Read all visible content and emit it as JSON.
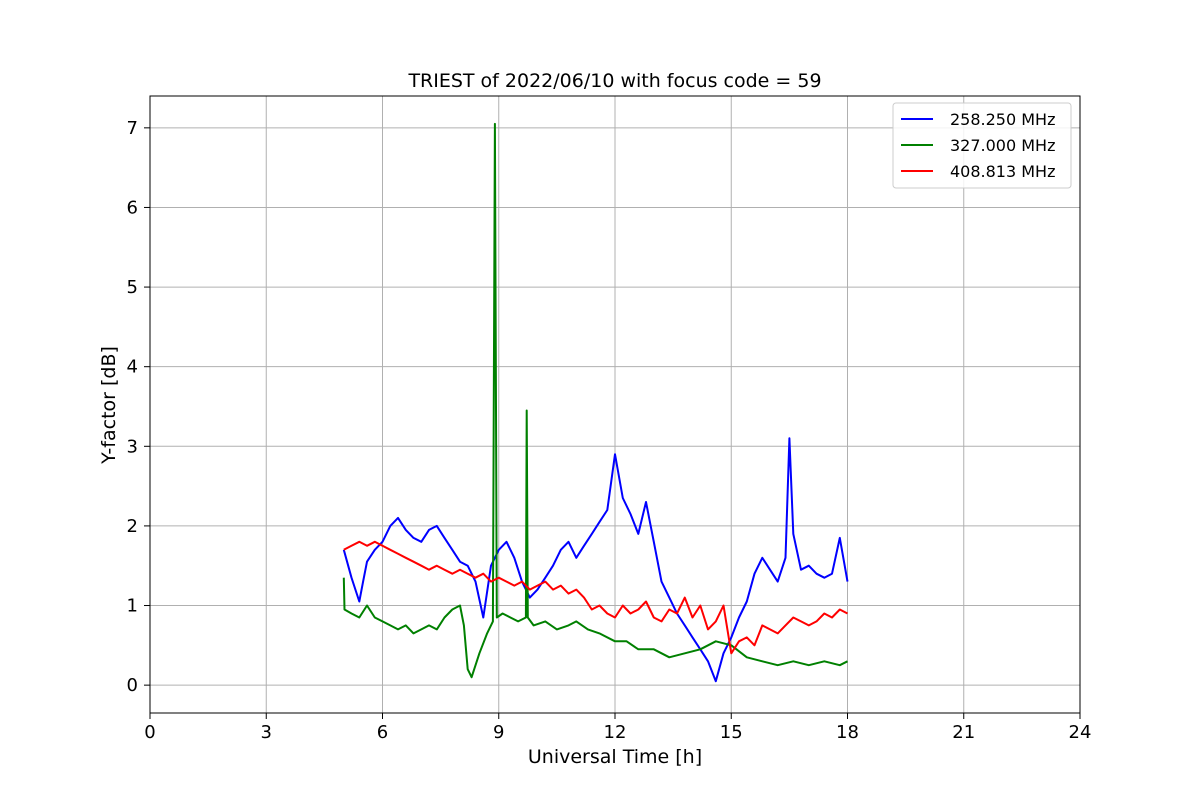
{
  "chart_data": {
    "type": "line",
    "title": "TRIEST of 2022/06/10 with focus code = 59",
    "xlabel": "Universal Time [h]",
    "ylabel": "Y-factor [dB]",
    "xlim": [
      0,
      24
    ],
    "ylim": [
      -0.35,
      7.4
    ],
    "xticks": [
      "0",
      "3",
      "6",
      "9",
      "12",
      "15",
      "18",
      "21",
      "24"
    ],
    "yticks": [
      "0",
      "1",
      "2",
      "3",
      "4",
      "5",
      "6",
      "7"
    ],
    "grid": true,
    "legend_position": "top-right",
    "series": [
      {
        "name": "258.250 MHz",
        "color": "#0000ff",
        "x": [
          5.0,
          5.2,
          5.4,
          5.5,
          5.6,
          5.8,
          6.0,
          6.2,
          6.4,
          6.6,
          6.8,
          7.0,
          7.2,
          7.4,
          7.6,
          7.8,
          8.0,
          8.2,
          8.4,
          8.6,
          8.8,
          9.0,
          9.2,
          9.4,
          9.6,
          9.8,
          10.0,
          10.2,
          10.4,
          10.6,
          10.8,
          11.0,
          11.2,
          11.4,
          11.6,
          11.8,
          12.0,
          12.2,
          12.4,
          12.6,
          12.8,
          13.0,
          13.2,
          13.4,
          13.6,
          13.8,
          14.0,
          14.2,
          14.4,
          14.6,
          14.8,
          15.0,
          15.2,
          15.4,
          15.6,
          15.8,
          16.0,
          16.2,
          16.4,
          16.5,
          16.6,
          16.8,
          17.0,
          17.2,
          17.4,
          17.6,
          17.8,
          18.0
        ],
        "y": [
          1.7,
          1.35,
          1.05,
          1.3,
          1.55,
          1.7,
          1.8,
          2.0,
          2.1,
          1.95,
          1.85,
          1.8,
          1.95,
          2.0,
          1.85,
          1.7,
          1.55,
          1.5,
          1.3,
          0.85,
          1.5,
          1.7,
          1.8,
          1.6,
          1.3,
          1.1,
          1.2,
          1.35,
          1.5,
          1.7,
          1.8,
          1.6,
          1.75,
          1.9,
          2.05,
          2.2,
          2.9,
          2.35,
          2.15,
          1.9,
          2.3,
          1.8,
          1.3,
          1.1,
          0.9,
          0.75,
          0.6,
          0.45,
          0.3,
          0.05,
          0.4,
          0.6,
          0.85,
          1.05,
          1.4,
          1.6,
          1.45,
          1.3,
          1.6,
          3.1,
          1.9,
          1.45,
          1.5,
          1.4,
          1.35,
          1.4,
          1.85,
          1.3
        ]
      },
      {
        "name": "327.000 MHz",
        "color": "#008000",
        "x": [
          5.0,
          5.02,
          5.2,
          5.4,
          5.6,
          5.8,
          6.0,
          6.2,
          6.4,
          6.6,
          6.8,
          7.0,
          7.2,
          7.4,
          7.6,
          7.8,
          8.0,
          8.1,
          8.2,
          8.3,
          8.5,
          8.7,
          8.85,
          8.9,
          8.95,
          9.1,
          9.3,
          9.5,
          9.7,
          9.72,
          9.75,
          9.9,
          10.2,
          10.5,
          10.8,
          11.0,
          11.3,
          11.6,
          12.0,
          12.3,
          12.6,
          13.0,
          13.4,
          13.8,
          14.2,
          14.6,
          15.0,
          15.4,
          15.8,
          16.2,
          16.6,
          17.0,
          17.4,
          17.8,
          18.0
        ],
        "y": [
          1.35,
          0.95,
          0.9,
          0.85,
          1.0,
          0.85,
          0.8,
          0.75,
          0.7,
          0.75,
          0.65,
          0.7,
          0.75,
          0.7,
          0.85,
          0.95,
          1.0,
          0.75,
          0.2,
          0.1,
          0.4,
          0.65,
          0.8,
          7.05,
          0.85,
          0.9,
          0.85,
          0.8,
          0.85,
          3.45,
          0.85,
          0.75,
          0.8,
          0.7,
          0.75,
          0.8,
          0.7,
          0.65,
          0.55,
          0.55,
          0.45,
          0.45,
          0.35,
          0.4,
          0.45,
          0.55,
          0.5,
          0.35,
          0.3,
          0.25,
          0.3,
          0.25,
          0.3,
          0.25,
          0.3
        ]
      },
      {
        "name": "408.813 MHz",
        "color": "#ff0000",
        "x": [
          5.0,
          5.2,
          5.4,
          5.6,
          5.8,
          6.0,
          6.2,
          6.4,
          6.6,
          6.8,
          7.0,
          7.2,
          7.4,
          7.6,
          7.8,
          8.0,
          8.2,
          8.4,
          8.6,
          8.8,
          9.0,
          9.2,
          9.4,
          9.6,
          9.8,
          10.0,
          10.2,
          10.4,
          10.6,
          10.8,
          11.0,
          11.2,
          11.4,
          11.6,
          11.8,
          12.0,
          12.2,
          12.4,
          12.6,
          12.8,
          13.0,
          13.2,
          13.4,
          13.6,
          13.8,
          14.0,
          14.2,
          14.4,
          14.6,
          14.8,
          15.0,
          15.2,
          15.4,
          15.6,
          15.8,
          16.0,
          16.2,
          16.4,
          16.6,
          16.8,
          17.0,
          17.2,
          17.4,
          17.6,
          17.8,
          18.0
        ],
        "y": [
          1.7,
          1.75,
          1.8,
          1.75,
          1.8,
          1.75,
          1.7,
          1.65,
          1.6,
          1.55,
          1.5,
          1.45,
          1.5,
          1.45,
          1.4,
          1.45,
          1.4,
          1.35,
          1.4,
          1.3,
          1.35,
          1.3,
          1.25,
          1.3,
          1.2,
          1.25,
          1.3,
          1.2,
          1.25,
          1.15,
          1.2,
          1.1,
          0.95,
          1.0,
          0.9,
          0.85,
          1.0,
          0.9,
          0.95,
          1.05,
          0.85,
          0.8,
          0.95,
          0.9,
          1.1,
          0.85,
          1.0,
          0.7,
          0.8,
          1.0,
          0.4,
          0.55,
          0.6,
          0.5,
          0.75,
          0.7,
          0.65,
          0.75,
          0.85,
          0.8,
          0.75,
          0.8,
          0.9,
          0.85,
          0.95,
          0.9
        ]
      }
    ]
  }
}
